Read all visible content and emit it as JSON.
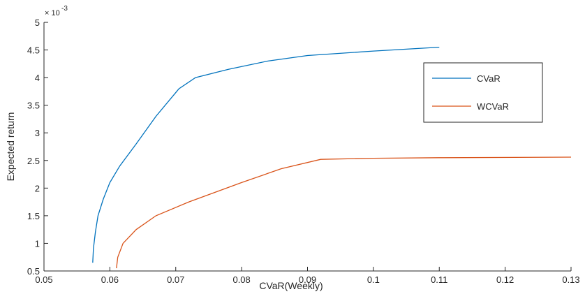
{
  "chart_data": {
    "type": "line",
    "x_label": "CVaR(Weekly)",
    "y_label": "Expected return",
    "y_scale_label": {
      "base": "× 10",
      "exponent": "-3"
    },
    "xlim": [
      0.05,
      0.13
    ],
    "xticks": [
      0.05,
      0.06,
      0.07,
      0.08,
      0.09,
      0.1,
      0.11,
      0.12,
      0.13
    ],
    "ylim": [
      0.5,
      5
    ],
    "yticks": [
      0.5,
      1,
      1.5,
      2,
      2.5,
      3,
      3.5,
      4,
      4.5,
      5
    ],
    "legend": "upper right",
    "series": [
      {
        "name": "CVaR",
        "color": "#0072bd",
        "x": [
          0.0574,
          0.0575,
          0.0578,
          0.0582,
          0.059,
          0.06,
          0.0615,
          0.064,
          0.067,
          0.0705,
          0.073,
          0.078,
          0.084,
          0.09,
          0.1,
          0.11
        ],
        "values": [
          0.65,
          0.9,
          1.2,
          1.5,
          1.8,
          2.1,
          2.4,
          2.8,
          3.3,
          3.8,
          4.0,
          4.15,
          4.3,
          4.4,
          4.48,
          4.55
        ]
      },
      {
        "name": "WCVaR",
        "color": "#d95319",
        "x": [
          0.061,
          0.0612,
          0.062,
          0.064,
          0.067,
          0.072,
          0.08,
          0.086,
          0.092,
          0.1,
          0.11,
          0.13
        ],
        "values": [
          0.55,
          0.75,
          1.0,
          1.25,
          1.5,
          1.75,
          2.1,
          2.35,
          2.52,
          2.54,
          2.55,
          2.56
        ]
      }
    ]
  }
}
